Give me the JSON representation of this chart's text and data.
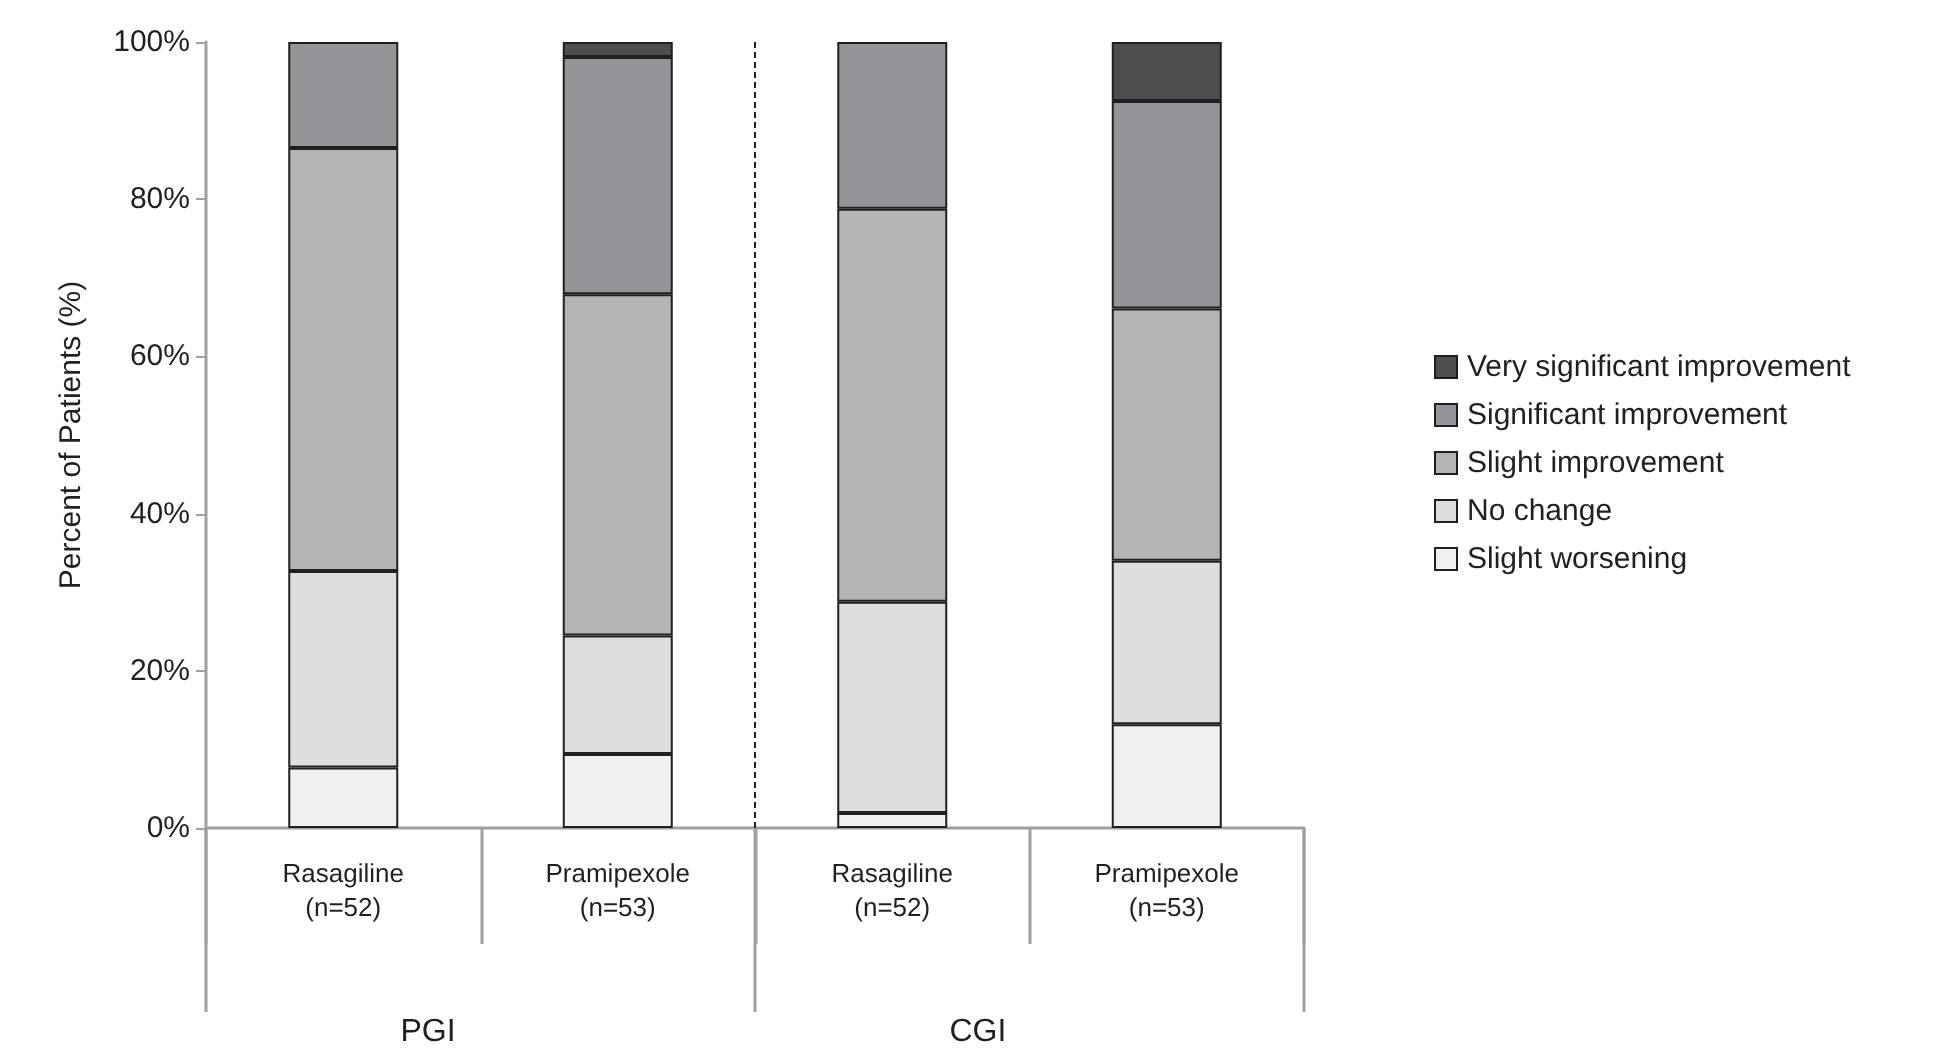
{
  "chart_data": {
    "type": "bar",
    "stacked": true,
    "categories": [
      "Rasagiline\n(n=52)",
      "Pramipexole\n(n=53)",
      "Rasagiline\n(n=52)",
      "Pramipexole\n(n=53)"
    ],
    "series": [
      {
        "name": "Slight worsening",
        "color": "#f0f0f0",
        "values": [
          7.7,
          9.4,
          1.9,
          13.2
        ]
      },
      {
        "name": "No change",
        "color": "#dcdddf",
        "values": [
          25.0,
          15.1,
          26.9,
          20.8
        ]
      },
      {
        "name": "Slight improvement",
        "color": "#b3b4b6",
        "values": [
          53.8,
          43.4,
          50.0,
          32.1
        ]
      },
      {
        "name": "Significant improvement",
        "color": "#939598",
        "values": [
          13.5,
          30.2,
          21.2,
          26.4
        ]
      },
      {
        "name": "Very significant improvement",
        "color": "#4d4d4f",
        "values": [
          null,
          1.9,
          null,
          7.5
        ]
      }
    ],
    "ylabel": "Percent of Patients (%)",
    "ylim": [
      0,
      100
    ],
    "yticks": [
      {
        "value": 0,
        "label": "0%"
      },
      {
        "value": 20,
        "label": "20%"
      },
      {
        "value": 40,
        "label": "40%"
      },
      {
        "value": 60,
        "label": "60%"
      },
      {
        "value": 80,
        "label": "80%"
      },
      {
        "value": 100,
        "label": "100%"
      }
    ],
    "annotations": [
      "PGI",
      "CGI"
    ],
    "legend": "right",
    "grid": false
  }
}
